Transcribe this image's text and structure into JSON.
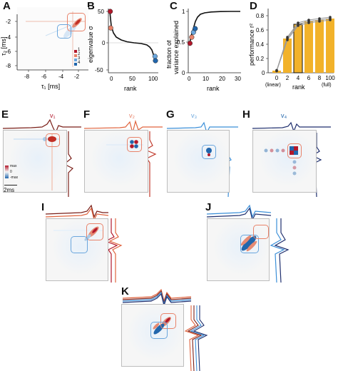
{
  "figure": {
    "panel_labels": [
      "A",
      "B",
      "C",
      "D",
      "E",
      "F",
      "G",
      "H",
      "I",
      "J",
      "K"
    ],
    "vector_labels": {
      "E": "v₁",
      "F": "v₂",
      "G": "v₃",
      "H": "v₄"
    },
    "colorbar": {
      "max_label": "max",
      "zero_label": "0",
      "min_label": "-max"
    },
    "scalebar_label": "2ms",
    "colors": {
      "red": "#b2182b",
      "orange": "#e8836a",
      "blue": "#2166ac",
      "lightblue": "#6aa6dd",
      "gold": "#f2b22a",
      "gray": "#9a9a9a"
    }
  },
  "chart_data": [
    {
      "panel": "A",
      "type": "heatmap",
      "xlabel": "τ₁ [ms]",
      "ylabel": "τ₂ [ms]",
      "xticks": [
        "-8",
        "-6",
        "-4",
        "-2"
      ],
      "yticks": [
        "-8",
        "-6",
        "-4",
        "-2"
      ],
      "legend": [
        "1",
        "2",
        "3",
        "4"
      ]
    },
    {
      "panel": "B",
      "type": "scatter",
      "xlabel": "rank",
      "ylabel": "eigenvalue σ",
      "xticks": [
        "0",
        "50",
        "100"
      ],
      "yticks": [
        "-50",
        "0",
        "50"
      ],
      "xlim": [
        0,
        100
      ],
      "ylim": [
        -55,
        60
      ],
      "highlighted_points": [
        {
          "x": 1,
          "y": 55,
          "color": "#b2182b"
        },
        {
          "x": 2,
          "y": 26,
          "color": "#e8836a"
        },
        {
          "x": 99,
          "y": -25,
          "color": "#6aa6dd"
        },
        {
          "x": 100,
          "y": -33,
          "color": "#2166ac"
        }
      ]
    },
    {
      "panel": "C",
      "type": "line",
      "xlabel": "rank",
      "ylabel": "fraction of variance explained",
      "xticks": [
        "0",
        "10",
        "20",
        "30"
      ],
      "yticks": [
        "0",
        "0.5",
        "1"
      ],
      "xlim": [
        0,
        30
      ],
      "ylim": [
        0,
        1
      ],
      "highlighted_points": [
        {
          "x": 1,
          "y": 0.48,
          "color": "#b2182b"
        },
        {
          "x": 2,
          "y": 0.58,
          "color": "#e8836a"
        },
        {
          "x": 3,
          "y": 0.66,
          "color": "#6aa6dd"
        },
        {
          "x": 4,
          "y": 0.72,
          "color": "#2166ac"
        }
      ]
    },
    {
      "panel": "D",
      "type": "bar",
      "xlabel": "rank",
      "ylabel": "performance r²",
      "categories": [
        "0",
        "2",
        "4",
        "6",
        "8",
        "100"
      ],
      "category_sublabels": [
        "(linear)",
        "",
        "",
        "",
        "",
        "(full)"
      ],
      "values": [
        0.03,
        0.48,
        0.68,
        0.72,
        0.74,
        0.76
      ],
      "yticks": [
        "0",
        "0.2",
        "0.4",
        "0.6",
        "0.8"
      ],
      "ylim": [
        0,
        0.9
      ]
    }
  ]
}
